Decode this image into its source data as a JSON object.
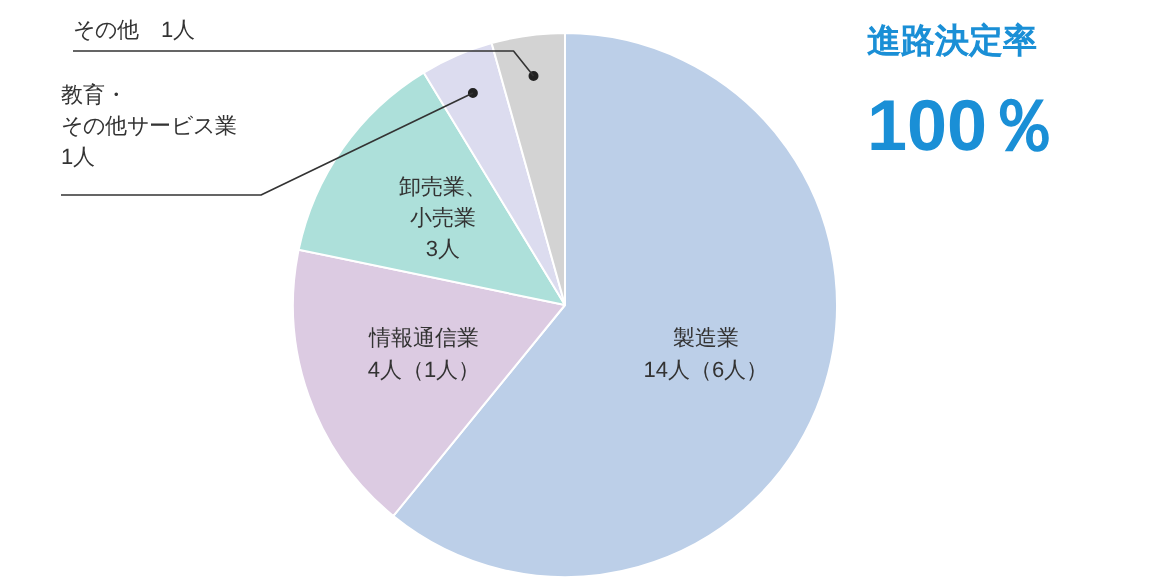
{
  "chart_data": {
    "type": "pie",
    "categories": [
      "製造業",
      "情報通信業",
      "卸売業、小売業",
      "教育・その他サービス業",
      "その他"
    ],
    "values": [
      14,
      4,
      3,
      1,
      1
    ],
    "value_labels": [
      "14人（6人）",
      "4人（1人）",
      "3人",
      "1人",
      "1人"
    ],
    "colors": [
      "#bccfe8",
      "#dccbe2",
      "#ade0da",
      "#dcdcef",
      "#d3d3d3"
    ],
    "annotations": [
      "進路決定率",
      "100％"
    ]
  }
}
